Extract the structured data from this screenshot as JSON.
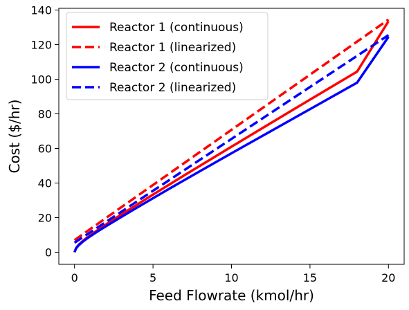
{
  "chart_data": {
    "type": "line",
    "xlabel": "Feed Flowrate (kmol/hr)",
    "ylabel": "Cost ($/hr)",
    "xlim": [
      -1,
      21
    ],
    "ylim": [
      -7,
      141
    ],
    "xticks": [
      0,
      5,
      10,
      15,
      20
    ],
    "yticks": [
      0,
      20,
      40,
      60,
      80,
      100,
      120,
      140
    ],
    "legend_position": "top-left",
    "grid": false,
    "series": [
      {
        "name": "Reactor 1 (continuous)",
        "color": "#ff0000",
        "style": "solid",
        "x": [
          0,
          0.1,
          0.25,
          0.5,
          0.75,
          1,
          1.5,
          2,
          3,
          4,
          5,
          6,
          7,
          8,
          10,
          12,
          14,
          16,
          18,
          20
        ],
        "y": [
          0,
          2.4,
          4.2,
          6.3,
          8.1,
          9.8,
          13.0,
          16.0,
          21.9,
          27.6,
          33.3,
          38.9,
          44.5,
          50.0,
          61.0,
          71.9,
          82.8,
          93.6,
          104.4,
          133.5
        ]
      },
      {
        "name": "Reactor 1 (linearized)",
        "color": "#ff0000",
        "style": "dashed",
        "x": [
          0,
          20
        ],
        "y": [
          7.0,
          134.5
        ]
      },
      {
        "name": "Reactor 2 (continuous)",
        "color": "#0000ff",
        "style": "solid",
        "x": [
          0,
          0.1,
          0.25,
          0.5,
          0.75,
          1,
          1.5,
          2,
          3,
          4,
          5,
          6,
          7,
          8,
          10,
          12,
          14,
          16,
          18,
          20
        ],
        "y": [
          0,
          2.2,
          3.9,
          5.9,
          7.6,
          9.2,
          12.2,
          15.0,
          20.5,
          25.9,
          31.2,
          36.5,
          41.7,
          46.9,
          57.2,
          67.4,
          77.6,
          87.8,
          98.0,
          124.5
        ]
      },
      {
        "name": "Reactor 2 (linearized)",
        "color": "#0000ff",
        "style": "dashed",
        "x": [
          0,
          20
        ],
        "y": [
          5.5,
          125.5
        ]
      }
    ]
  }
}
